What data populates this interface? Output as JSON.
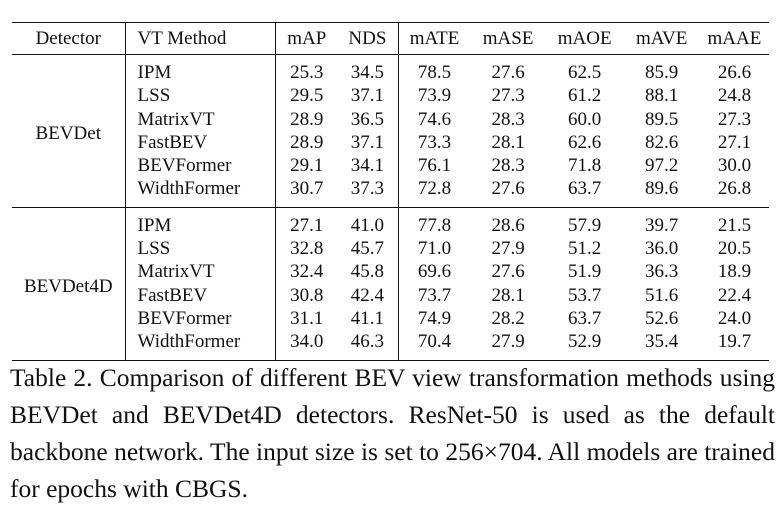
{
  "table": {
    "headers": [
      "Detector",
      "VT Method",
      "mAP",
      "NDS",
      "mATE",
      "mASE",
      "mAOE",
      "mAVE",
      "mAAE"
    ],
    "groups": [
      {
        "detector": "BEVDet",
        "rows": [
          {
            "method": "IPM",
            "values": [
              "25.3",
              "34.5",
              "78.5",
              "27.6",
              "62.5",
              "85.9",
              "26.6"
            ]
          },
          {
            "method": "LSS",
            "values": [
              "29.5",
              "37.1",
              "73.9",
              "27.3",
              "61.2",
              "88.1",
              "24.8"
            ]
          },
          {
            "method": "MatrixVT",
            "values": [
              "28.9",
              "36.5",
              "74.6",
              "28.3",
              "60.0",
              "89.5",
              "27.3"
            ]
          },
          {
            "method": "FastBEV",
            "values": [
              "28.9",
              "37.1",
              "73.3",
              "28.1",
              "62.6",
              "82.6",
              "27.1"
            ]
          },
          {
            "method": "BEVFormer",
            "values": [
              "29.1",
              "34.1",
              "76.1",
              "28.3",
              "71.8",
              "97.2",
              "30.0"
            ]
          },
          {
            "method": "WidthFormer",
            "values": [
              "30.7",
              "37.3",
              "72.8",
              "27.6",
              "63.7",
              "89.6",
              "26.8"
            ]
          }
        ]
      },
      {
        "detector": "BEVDet4D",
        "rows": [
          {
            "method": "IPM",
            "values": [
              "27.1",
              "41.0",
              "77.8",
              "28.6",
              "57.9",
              "39.7",
              "21.5"
            ]
          },
          {
            "method": "LSS",
            "values": [
              "32.8",
              "45.7",
              "71.0",
              "27.9",
              "51.2",
              "36.0",
              "20.5"
            ]
          },
          {
            "method": "MatrixVT",
            "values": [
              "32.4",
              "45.8",
              "69.6",
              "27.6",
              "51.9",
              "36.3",
              "18.9"
            ]
          },
          {
            "method": "FastBEV",
            "values": [
              "30.8",
              "42.4",
              "73.7",
              "28.1",
              "53.7",
              "51.6",
              "22.4"
            ]
          },
          {
            "method": "BEVFormer",
            "values": [
              "31.1",
              "41.1",
              "74.9",
              "28.2",
              "63.7",
              "52.6",
              "24.0"
            ]
          },
          {
            "method": "WidthFormer",
            "values": [
              "34.0",
              "46.3",
              "70.4",
              "27.9",
              "52.9",
              "35.4",
              "19.7"
            ]
          }
        ]
      }
    ]
  },
  "caption": "Table 2. Comparison of different BEV view transformation methods using BEVDet and BEVDet4D detectors. ResNet-50 is used as the default backbone network. The input size is set to 256×704. All models are trained for epochs with CBGS."
}
